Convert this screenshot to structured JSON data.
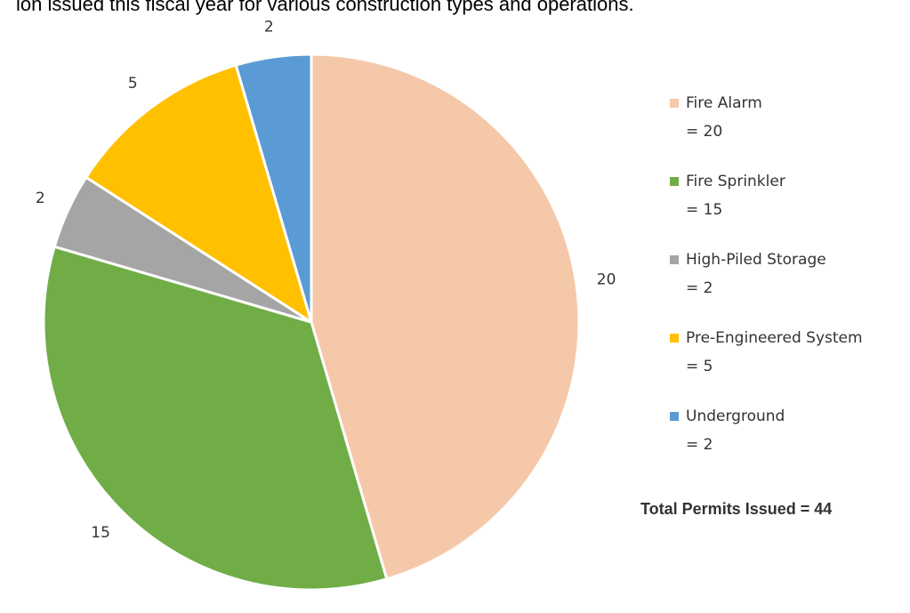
{
  "chart_data": {
    "type": "pie",
    "title": "ion issued this fiscal year for various construction types and operations.",
    "categories": [
      "Fire Alarm",
      "Fire Sprinkler",
      "High-Piled Storage",
      "Pre-Engineered System",
      "Underground"
    ],
    "values": [
      20,
      15,
      2,
      5,
      2
    ],
    "legend_value_labels": [
      "= 20",
      "= 15",
      "= 2",
      "= 5",
      "= 2"
    ],
    "colors": [
      "#f5c8a9",
      "#70ad47",
      "#a5a5a5",
      "#ffc000",
      "#5b9bd5"
    ],
    "legend": "right",
    "annotation": "Total Permits Issued = 44"
  }
}
